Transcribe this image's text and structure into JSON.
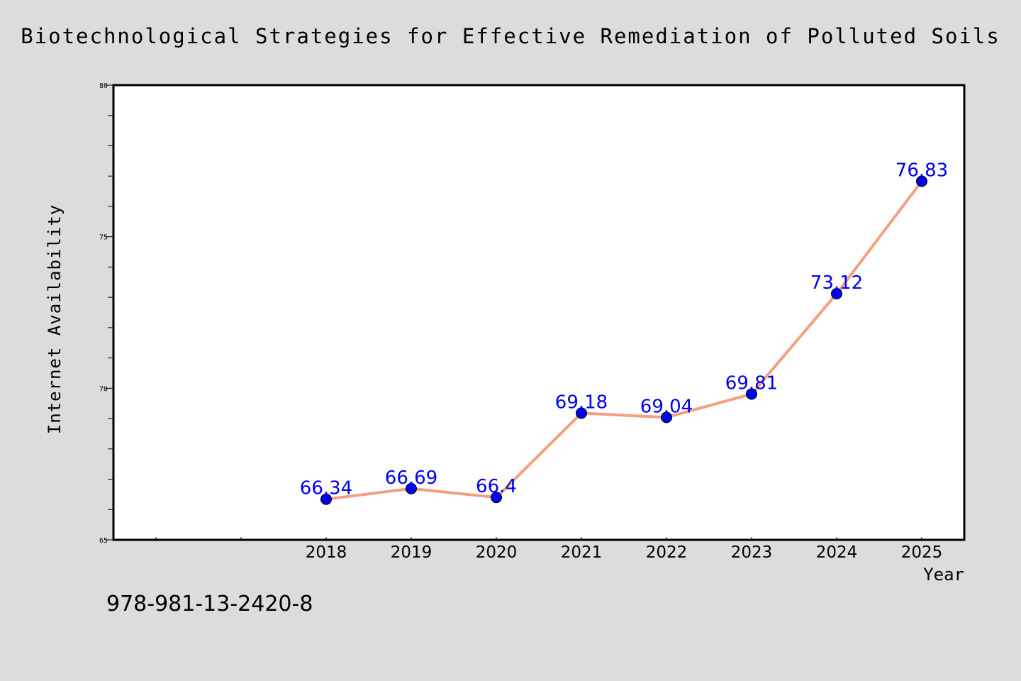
{
  "chart_data": {
    "type": "line",
    "title": "Biotechnological Strategies for Effective Remediation of Polluted Soils",
    "xlabel": "Year",
    "ylabel": "Internet Availability",
    "categories": [
      "2018",
      "2019",
      "2020",
      "2021",
      "2022",
      "2023",
      "2024",
      "2025"
    ],
    "series": [
      {
        "values": [
          66.34,
          66.69,
          66.4,
          69.18,
          69.04,
          69.81,
          73.12,
          76.83
        ],
        "labels": [
          "66.34",
          "66.69",
          "66.4",
          "69.18",
          "69.04",
          "69.81",
          "73.12",
          "76.83"
        ]
      }
    ],
    "ylim": [
      65,
      80
    ],
    "yticks": [
      "65",
      "70",
      "75",
      "80"
    ],
    "grid": false,
    "legend": "none",
    "colors": {
      "line": "#f4a07f",
      "marker": "#0000ee",
      "label": "#0000ee"
    }
  },
  "footer": {
    "isbn": "978-981-13-2420-8"
  }
}
